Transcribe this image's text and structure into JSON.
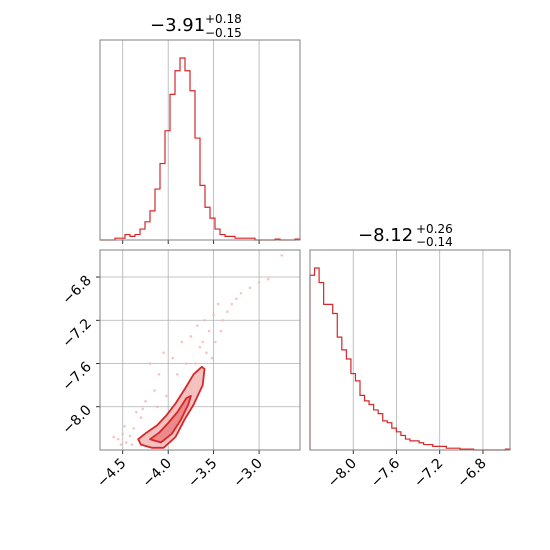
{
  "chart_data": {
    "type": "corner",
    "color": "#d62728",
    "fill_light": "#f2b6b6",
    "fill_mid": "#e88080",
    "parameters": [
      {
        "title_value": "−3.91",
        "title_plus": "+0.18",
        "title_minus": "−0.15",
        "range": [
          -4.75,
          -2.55
        ],
        "ticks": [
          {
            "value": -4.5,
            "label": "−4.5"
          },
          {
            "value": -4.0,
            "label": "−4.0"
          },
          {
            "value": -3.5,
            "label": "−3.5"
          },
          {
            "value": -3.0,
            "label": "−3.0"
          }
        ]
      },
      {
        "title_value": "−8.12",
        "title_plus": "+0.26",
        "title_minus": "−0.14",
        "range": [
          -8.4,
          -6.55
        ],
        "ticks": [
          {
            "value": -8.0,
            "label": "−8.0"
          },
          {
            "value": -7.6,
            "label": "−7.6"
          },
          {
            "value": -7.2,
            "label": "−7.2"
          },
          {
            "value": -6.8,
            "label": "−6.8"
          }
        ]
      }
    ],
    "hist1": {
      "range": [
        -4.75,
        -2.55
      ],
      "bins": 40,
      "counts": [
        0,
        0,
        0,
        0.01,
        0.01,
        0.03,
        0.02,
        0.03,
        0.06,
        0.1,
        0.16,
        0.28,
        0.42,
        0.6,
        0.8,
        0.93,
        1.0,
        0.93,
        0.82,
        0.56,
        0.3,
        0.18,
        0.12,
        0.06,
        0.03,
        0.02,
        0.02,
        0.01,
        0.01,
        0.01,
        0.01,
        0,
        0,
        0,
        0,
        0.005,
        0,
        0,
        0,
        0.005
      ]
    },
    "hist2": {
      "range": [
        -8.4,
        -6.55
      ],
      "bins": 44,
      "counts": [
        0.96,
        1.0,
        0.92,
        0.8,
        0.8,
        0.75,
        0.62,
        0.55,
        0.5,
        0.42,
        0.38,
        0.3,
        0.27,
        0.25,
        0.22,
        0.2,
        0.16,
        0.15,
        0.12,
        0.1,
        0.08,
        0.06,
        0.05,
        0.05,
        0.04,
        0.03,
        0.03,
        0.02,
        0.02,
        0.02,
        0.01,
        0.01,
        0.01,
        0.005,
        0.005,
        0.005,
        0,
        0,
        0,
        0,
        0,
        0,
        0,
        0.005
      ]
    },
    "contours": [
      {
        "level": "outer",
        "points": [
          [
            -4.33,
            -8.3
          ],
          [
            -4.3,
            -8.35
          ],
          [
            -4.18,
            -8.38
          ],
          [
            -4.05,
            -8.38
          ],
          [
            -3.92,
            -8.28
          ],
          [
            -3.82,
            -8.12
          ],
          [
            -3.72,
            -7.98
          ],
          [
            -3.62,
            -7.8
          ],
          [
            -3.6,
            -7.65
          ],
          [
            -3.63,
            -7.63
          ],
          [
            -3.72,
            -7.7
          ],
          [
            -3.82,
            -7.84
          ],
          [
            -3.92,
            -7.97
          ],
          [
            -4.02,
            -8.08
          ],
          [
            -4.12,
            -8.17
          ],
          [
            -4.24,
            -8.24
          ]
        ]
      },
      {
        "level": "inner",
        "points": [
          [
            -4.2,
            -8.3
          ],
          [
            -4.08,
            -8.33
          ],
          [
            -3.96,
            -8.25
          ],
          [
            -3.86,
            -8.12
          ],
          [
            -3.78,
            -7.98
          ],
          [
            -3.75,
            -7.9
          ],
          [
            -3.8,
            -7.92
          ],
          [
            -3.9,
            -8.05
          ],
          [
            -4.0,
            -8.15
          ],
          [
            -4.1,
            -8.24
          ]
        ]
      }
    ],
    "scatter_points": [
      [
        -4.42,
        -8.27
      ],
      [
        -4.38,
        -8.2
      ],
      [
        -4.46,
        -8.33
      ],
      [
        -4.3,
        -8.1
      ],
      [
        -4.25,
        -7.95
      ],
      [
        -4.35,
        -8.05
      ],
      [
        -4.15,
        -7.85
      ],
      [
        -4.1,
        -7.7
      ],
      [
        -4.2,
        -7.6
      ],
      [
        -4.05,
        -7.5
      ],
      [
        -3.95,
        -7.55
      ],
      [
        -3.85,
        -7.4
      ],
      [
        -3.75,
        -7.35
      ],
      [
        -3.68,
        -7.25
      ],
      [
        -3.6,
        -7.2
      ],
      [
        -3.5,
        -7.15
      ],
      [
        -3.45,
        -7.05
      ],
      [
        -3.55,
        -7.3
      ],
      [
        -3.65,
        -7.45
      ],
      [
        -3.58,
        -7.5
      ],
      [
        -3.48,
        -7.4
      ],
      [
        -3.4,
        -7.2
      ],
      [
        -3.3,
        -7.05
      ],
      [
        -3.2,
        -6.95
      ],
      [
        -3.1,
        -6.9
      ],
      [
        -3.0,
        -6.85
      ],
      [
        -2.9,
        -6.82
      ],
      [
        -2.75,
        -6.6
      ],
      [
        -4.5,
        -8.25
      ],
      [
        -4.55,
        -8.3
      ],
      [
        -4.48,
        -8.18
      ],
      [
        -4.12,
        -8.0
      ],
      [
        -4.28,
        -8.02
      ],
      [
        -4.02,
        -7.9
      ],
      [
        -3.9,
        -7.7
      ],
      [
        -3.7,
        -7.6
      ],
      [
        -3.52,
        -7.55
      ],
      [
        -3.42,
        -7.3
      ],
      [
        -3.35,
        -7.12
      ],
      [
        -4.4,
        -8.35
      ],
      [
        -4.52,
        -8.35
      ],
      [
        -4.6,
        -8.28
      ],
      [
        -3.8,
        -7.6
      ],
      [
        -3.62,
        -7.4
      ],
      [
        -3.25,
        -7.0
      ]
    ]
  }
}
